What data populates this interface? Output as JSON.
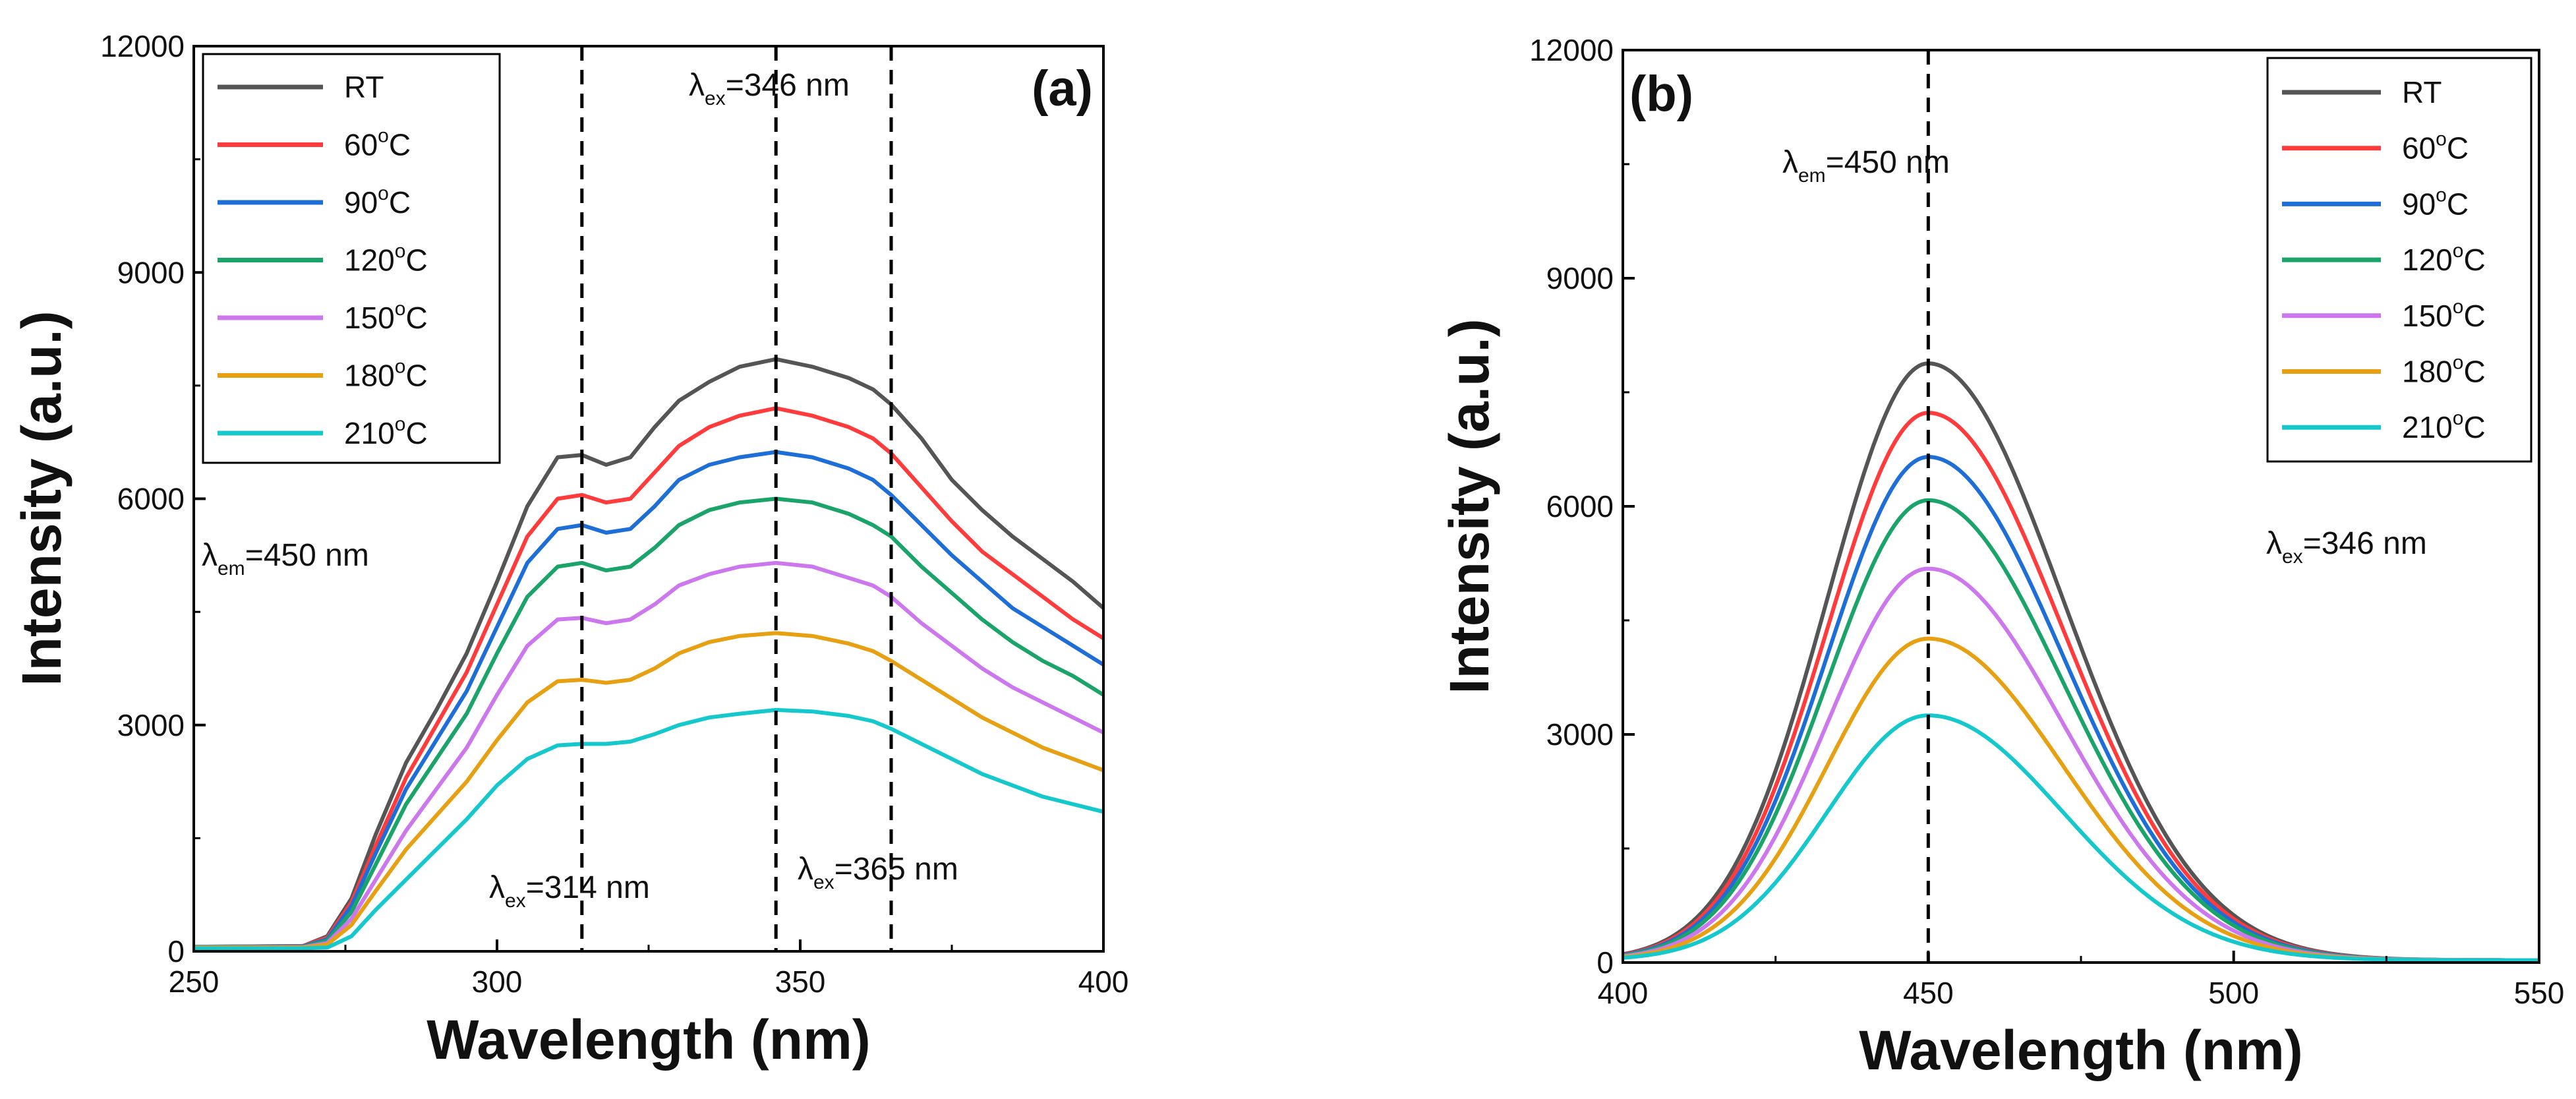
{
  "chart_data": [
    {
      "type": "line",
      "panel_label": "(a)",
      "xlabel": "Wavelength (nm)",
      "ylabel": "Intensity (a.u.)",
      "xlim": [
        250,
        400
      ],
      "ylim": [
        0,
        12000
      ],
      "xticks": [
        250,
        300,
        350,
        400
      ],
      "yticks": [
        0,
        3000,
        6000,
        9000,
        12000
      ],
      "legend": {
        "position": "top-left"
      },
      "x": [
        250,
        268,
        272,
        276,
        280,
        285,
        290,
        295,
        300,
        305,
        310,
        314,
        318,
        322,
        326,
        330,
        335,
        340,
        346,
        352,
        358,
        362,
        365,
        370,
        375,
        380,
        385,
        390,
        395,
        400
      ],
      "series": [
        {
          "name": "RT",
          "label_base": "RT",
          "label_sup": "",
          "label_tail": "",
          "color": "#555555",
          "values": [
            60,
            70,
            200,
            700,
            1550,
            2500,
            3200,
            3950,
            4900,
            5900,
            6550,
            6580,
            6450,
            6550,
            6950,
            7300,
            7550,
            7750,
            7850,
            7750,
            7600,
            7450,
            7250,
            6800,
            6250,
            5850,
            5500,
            5200,
            4900,
            4550
          ]
        },
        {
          "name": "60°C",
          "label_base": "60",
          "label_sup": "o",
          "label_tail": "C",
          "color": "#ff3b3b",
          "values": [
            60,
            70,
            180,
            650,
            1400,
            2300,
            3000,
            3700,
            4600,
            5500,
            6000,
            6050,
            5950,
            6000,
            6350,
            6700,
            6950,
            7100,
            7200,
            7100,
            6950,
            6800,
            6600,
            6150,
            5700,
            5300,
            5000,
            4700,
            4400,
            4150
          ]
        },
        {
          "name": "90°C",
          "label_base": "90",
          "label_sup": "o",
          "label_tail": "C",
          "color": "#1e6ed8",
          "values": [
            60,
            65,
            160,
            600,
            1300,
            2150,
            2800,
            3450,
            4300,
            5150,
            5600,
            5650,
            5550,
            5600,
            5900,
            6250,
            6450,
            6550,
            6620,
            6550,
            6400,
            6250,
            6050,
            5650,
            5250,
            4900,
            4550,
            4300,
            4050,
            3800
          ]
        },
        {
          "name": "120°C",
          "label_base": "120",
          "label_sup": "o",
          "label_tail": "C",
          "color": "#1aa46a",
          "values": [
            60,
            60,
            140,
            520,
            1150,
            1950,
            2550,
            3150,
            3950,
            4700,
            5100,
            5150,
            5050,
            5100,
            5350,
            5650,
            5850,
            5950,
            6000,
            5950,
            5800,
            5650,
            5500,
            5100,
            4750,
            4400,
            4100,
            3850,
            3650,
            3400
          ]
        },
        {
          "name": "150°C",
          "label_base": "150",
          "label_sup": "o",
          "label_tail": "C",
          "color": "#cc77ee",
          "values": [
            55,
            55,
            110,
            430,
            950,
            1600,
            2150,
            2700,
            3400,
            4050,
            4400,
            4420,
            4350,
            4400,
            4600,
            4850,
            5000,
            5100,
            5150,
            5100,
            4950,
            4850,
            4700,
            4350,
            4050,
            3750,
            3500,
            3300,
            3100,
            2900
          ]
        },
        {
          "name": "180°C",
          "label_base": "180",
          "label_sup": "o",
          "label_tail": "C",
          "color": "#e6a012",
          "values": [
            50,
            50,
            90,
            350,
            800,
            1350,
            1800,
            2250,
            2800,
            3300,
            3580,
            3600,
            3560,
            3600,
            3750,
            3950,
            4100,
            4180,
            4220,
            4180,
            4080,
            3980,
            3850,
            3600,
            3350,
            3100,
            2900,
            2700,
            2550,
            2400
          ]
        },
        {
          "name": "210°C",
          "label_base": "210",
          "label_sup": "o",
          "label_tail": "C",
          "color": "#14c8cc",
          "values": [
            40,
            40,
            50,
            200,
            550,
            950,
            1350,
            1750,
            2200,
            2550,
            2730,
            2750,
            2750,
            2780,
            2880,
            3000,
            3100,
            3150,
            3200,
            3180,
            3120,
            3050,
            2950,
            2750,
            2550,
            2350,
            2200,
            2050,
            1950,
            1850
          ]
        }
      ],
      "vlines": [
        314,
        346,
        365
      ],
      "annotations": [
        {
          "base": "λ",
          "sub": "ex",
          "tail": "=346 nm"
        },
        {
          "base": "λ",
          "sub": "ex",
          "tail": "=314 nm"
        },
        {
          "base": "λ",
          "sub": "ex",
          "tail": "=365 nm"
        },
        {
          "base": "λ",
          "sub": "em",
          "tail": "=450 nm"
        }
      ]
    },
    {
      "type": "line",
      "panel_label": "(b)",
      "xlabel": "Wavelength (nm)",
      "ylabel": "Intensity (a.u.)",
      "xlim": [
        400,
        550
      ],
      "ylim": [
        0,
        12000
      ],
      "xticks": [
        400,
        450,
        500,
        550
      ],
      "yticks": [
        0,
        3000,
        6000,
        9000,
        12000
      ],
      "legend": {
        "position": "top-right"
      },
      "peak_nm": 450,
      "series": [
        {
          "name": "RT",
          "label_base": "RT",
          "label_sup": "",
          "label_tail": "",
          "color": "#555555",
          "peak": 7850
        },
        {
          "name": "60°C",
          "label_base": "60",
          "label_sup": "o",
          "label_tail": "C",
          "color": "#ff3b3b",
          "peak": 7200
        },
        {
          "name": "90°C",
          "label_base": "90",
          "label_sup": "o",
          "label_tail": "C",
          "color": "#1e6ed8",
          "peak": 6620
        },
        {
          "name": "120°C",
          "label_base": "120",
          "label_sup": "o",
          "label_tail": "C",
          "color": "#1aa46a",
          "peak": 6050
        },
        {
          "name": "150°C",
          "label_base": "150",
          "label_sup": "o",
          "label_tail": "C",
          "color": "#cc77ee",
          "peak": 5150
        },
        {
          "name": "180°C",
          "label_base": "180",
          "label_sup": "o",
          "label_tail": "C",
          "color": "#e6a012",
          "peak": 4230
        },
        {
          "name": "210°C",
          "label_base": "210",
          "label_sup": "o",
          "label_tail": "C",
          "color": "#14c8cc",
          "peak": 3220
        }
      ],
      "vlines": [
        450
      ],
      "annotations": [
        {
          "base": "λ",
          "sub": "em",
          "tail": "=450 nm"
        },
        {
          "base": "λ",
          "sub": "ex",
          "tail": "=346 nm"
        }
      ]
    }
  ]
}
